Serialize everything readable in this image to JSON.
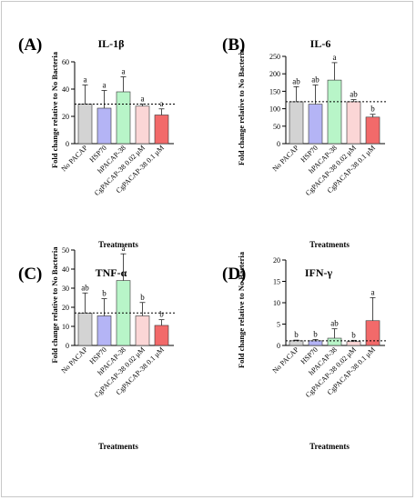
{
  "colors": {
    "no_pacap": "#d3d3d3",
    "hsp70": "#b4b4f5",
    "hpacap": "#b8f5c8",
    "cg002": "#fbd6d6",
    "cg01": "#f26a6a",
    "stroke": "#333333"
  },
  "chart_data": [
    {
      "type": "bar",
      "panel_letter": "(A)",
      "title": "IL-1β",
      "ylabel": "Fold change relative to No Bacteria",
      "xlabel": "Treatments",
      "categories": [
        "No PACAP",
        "HSP70",
        "hPACAP-38",
        "CgPACAP-38 0.02 μM",
        "CgPACAP-38 0.1 μM"
      ],
      "values": [
        29,
        26,
        38,
        27.5,
        21
      ],
      "errors": [
        14,
        13,
        11,
        1.5,
        4.5
      ],
      "sig_labels": [
        "a",
        "a",
        "a",
        "a",
        "a"
      ],
      "baseline": 29,
      "ylim": [
        0,
        60
      ],
      "yticks": [
        "0",
        "20",
        "40",
        "60"
      ]
    },
    {
      "type": "bar",
      "panel_letter": "(B)",
      "title": "IL-6",
      "ylabel": "Fold change relative to No Bacteria",
      "xlabel": "Treatments",
      "categories": [
        "No PACAP",
        "HSP70",
        "hPACAP-38",
        "CgPACAP-38 0.02 μM",
        "CgPACAP-38 0.1 μM"
      ],
      "values": [
        120,
        113,
        182,
        120,
        76
      ],
      "errors": [
        43,
        55,
        50,
        6,
        8
      ],
      "sig_labels": [
        "ab",
        "ab",
        "a",
        "ab",
        "b"
      ],
      "baseline": 120,
      "ylim": [
        0,
        250
      ],
      "yticks": [
        "0",
        "50",
        "100",
        "150",
        "200",
        "250"
      ]
    },
    {
      "type": "bar",
      "panel_letter": "(C)",
      "title": "TNF-α",
      "ylabel": "Fold change relative to No Bacteria",
      "xlabel": "Treatments",
      "categories": [
        "No PACAP",
        "HSP70",
        "hPACAP-38",
        "CgPACAP-38 0.02 μM",
        "CgPACAP-38 0.1 μM"
      ],
      "values": [
        17,
        15.5,
        34,
        15.5,
        10.5
      ],
      "errors": [
        10.5,
        9,
        14,
        7,
        3
      ],
      "sig_labels": [
        "ab",
        "b",
        "a",
        "b",
        "b"
      ],
      "baseline": 17,
      "ylim": [
        0,
        50
      ],
      "yticks": [
        "0",
        "10",
        "20",
        "30",
        "40",
        "50"
      ]
    },
    {
      "type": "bar",
      "panel_letter": "(D)",
      "title": "IFN-γ",
      "ylabel": "Fold change relative to No Bacteria",
      "xlabel": "Treatments",
      "categories": [
        "No PACAP",
        "HSP70",
        "hPACAP-38",
        "CgPACAP-38 0.02 μM",
        "CgPACAP-38 0.1 μM"
      ],
      "values": [
        1.1,
        1.1,
        1.7,
        0.9,
        5.8
      ],
      "errors": [
        0.15,
        0.3,
        2.2,
        0.3,
        5.4
      ],
      "sig_labels": [
        "b",
        "b",
        "ab",
        "b",
        "a"
      ],
      "baseline": 1.1,
      "ylim": [
        0,
        20
      ],
      "yticks": [
        "0",
        "5",
        "10",
        "15",
        "20"
      ]
    }
  ]
}
